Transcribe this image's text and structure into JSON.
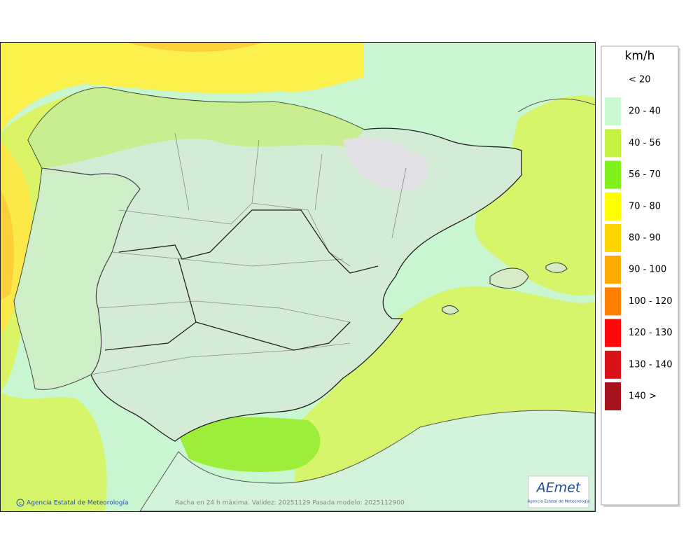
{
  "legend": {
    "title": "km/h",
    "items": [
      {
        "label": "< 20"
      },
      {
        "label": "20 - 40",
        "color": "#c8fbd2"
      },
      {
        "label": "40 - 56",
        "color": "#c2f140"
      },
      {
        "label": "56 - 70",
        "color": "#7ef01c"
      },
      {
        "label": "70 - 80",
        "color": "#ffff00"
      },
      {
        "label": "80 - 90",
        "color": "#ffd400"
      },
      {
        "label": "90 - 100",
        "color": "#ffa800"
      },
      {
        "label": "100 - 120",
        "color": "#ff8000"
      },
      {
        "label": "120 - 130",
        "color": "#ff0a0a"
      },
      {
        "label": "130 - 140",
        "color": "#d81216"
      },
      {
        "label": "140 >",
        "color": "#a8141e"
      }
    ]
  },
  "footer": {
    "credit": "Agencia Estatal de Meteorología",
    "caption": "Racha en 24 h máxima. Validez: 20251129 Pasada modelo: 2025112900"
  },
  "logo": {
    "text": "AEmet",
    "subtitle": "Agencia Estatal de Meteorología"
  }
}
